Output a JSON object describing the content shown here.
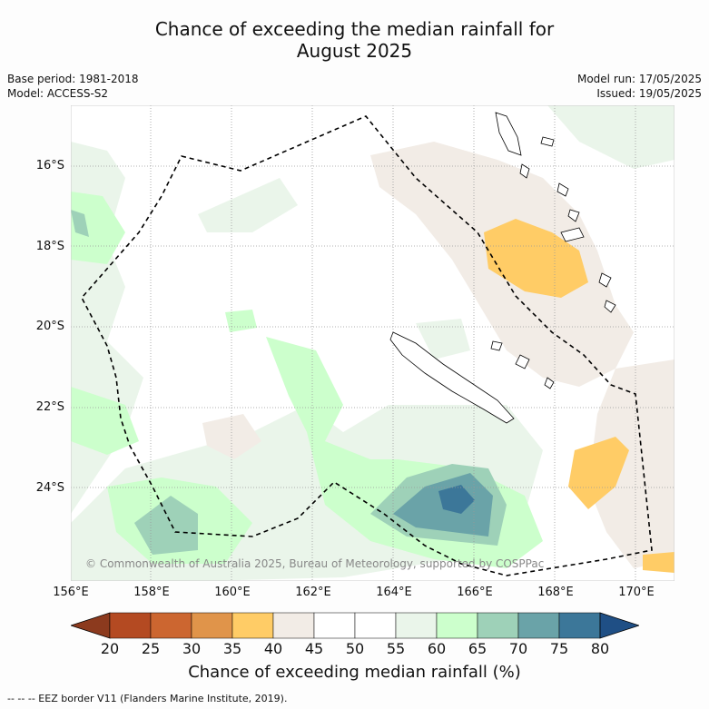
{
  "title_line1": "Chance of exceeding the median rainfall for",
  "title_line2": "August 2025",
  "base_period": "Base period: 1981-2018",
  "model": "Model: ACCESS-S2",
  "model_run": "Model run: 17/05/2025",
  "issued": "Issued: 19/05/2025",
  "copyright": "© Commonwealth of Australia 2025, Bureau of Meteorology, supported by COSPPac",
  "footer": "--  --  -- EEZ border V11 (Flanders Marine Institute, 2019).",
  "colorbar": {
    "label": "Chance of exceeding median rainfall (%)",
    "ticks": [
      "20",
      "25",
      "30",
      "35",
      "40",
      "45",
      "50",
      "55",
      "60",
      "65",
      "70",
      "75",
      "80"
    ],
    "colors": [
      "#8c3a1e",
      "#b44a22",
      "#cc6630",
      "#e0944a",
      "#ffcc66",
      "#f2ece6",
      "#ffffff",
      "#ffffff",
      "#eaf5ea",
      "#ccffcc",
      "#9ed1b8",
      "#6aa3a8",
      "#3c7799",
      "#1f4f85"
    ]
  },
  "map": {
    "lat_labels": [
      "16°S",
      "18°S",
      "20°S",
      "22°S",
      "24°S"
    ],
    "lon_labels": [
      "156°E",
      "158°E",
      "160°E",
      "162°E",
      "164°E",
      "166°E",
      "168°E",
      "170°E"
    ]
  }
}
